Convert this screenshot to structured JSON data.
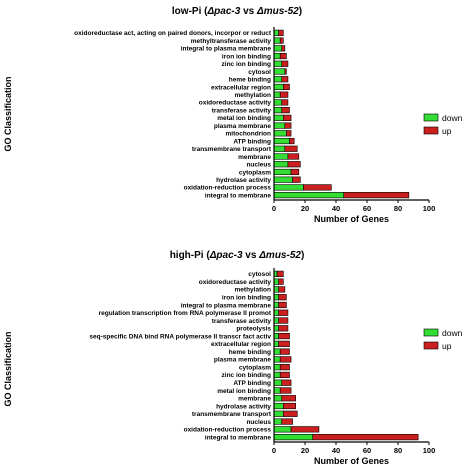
{
  "colors": {
    "down": "#33dd33",
    "up": "#cc1f1f",
    "axis": "#000000"
  },
  "chart_data": [
    {
      "type": "bar",
      "orientation": "horizontal",
      "stacked": true,
      "title": "low-Pi (Δpac-3 vs Δmus-52)",
      "title_parts": [
        "low-Pi (",
        "Δpac-3",
        " vs ",
        "Δmus-52",
        ")"
      ],
      "xlabel": "Number of Genes",
      "ylabel": "GO Classification",
      "xlim": [
        0,
        100
      ],
      "xticks": [
        0,
        20,
        40,
        60,
        80,
        100
      ],
      "legend_position": "right",
      "categories": [
        "oxidoreductase act, acting on paired donors, incorpor or reduct",
        "methyltransferase activity",
        "integral to plasma membrane",
        "iron ion binding",
        "zinc ion binding",
        "cytosol",
        "heme binding",
        "extracellular region",
        "methylation",
        "oxidoreductase activity",
        "transferase activity",
        "metal ion binding",
        "plasma membrane",
        "mitochondrion",
        "ATP binding",
        "transmembrane transport",
        "membrane",
        "nucleus",
        "cytoplasm",
        "hydrolase activity",
        "oxidation-reduction process",
        "integral to membrane"
      ],
      "series": [
        {
          "name": "down",
          "values": [
            3,
            4,
            5,
            4,
            5,
            7,
            5,
            6,
            4,
            5,
            5,
            6,
            7,
            8,
            10,
            7,
            9,
            9,
            11,
            12,
            19,
            45
          ]
        },
        {
          "name": "up",
          "values": [
            3,
            2,
            2,
            4,
            4,
            1,
            4,
            4,
            5,
            4,
            5,
            5,
            4,
            3,
            3,
            8,
            7,
            8,
            5,
            5,
            18,
            42
          ]
        }
      ]
    },
    {
      "type": "bar",
      "orientation": "horizontal",
      "stacked": true,
      "title": "high-Pi (Δpac-3 vs Δmus-52)",
      "title_parts": [
        "high-Pi (",
        "Δpac-3",
        " vs ",
        "Δmus-52",
        ")"
      ],
      "xlabel": "Number of Genes",
      "ylabel": "GO Classification",
      "xlim": [
        0,
        100
      ],
      "xticks": [
        0,
        20,
        40,
        60,
        80,
        100
      ],
      "legend_position": "right",
      "categories": [
        "cytosol",
        "oxidoreductase activity",
        "methylation",
        "iron ion binding",
        "integral to plasma membrane",
        "regulation transcription from RNA polymerase II promot",
        "transferase activity",
        "proteolysis",
        "seq-specific DNA bind RNA polymerase II transcr fact activ",
        "extracellular region",
        "heme binding",
        "plasma membrane",
        "cytoplasm",
        "zinc ion binding",
        "ATP binding",
        "metal ion binding",
        "membrane",
        "hydrolase activity",
        "transmembrane transport",
        "nucleus",
        "oxidation-reduction process",
        "integral to membrane"
      ],
      "series": [
        {
          "name": "down",
          "values": [
            2,
            3,
            3,
            3,
            3,
            3,
            3,
            3,
            3,
            3,
            4,
            4,
            4,
            4,
            5,
            4,
            5,
            6,
            6,
            5,
            11,
            25
          ]
        },
        {
          "name": "up",
          "values": [
            4,
            3,
            4,
            5,
            5,
            6,
            6,
            6,
            7,
            7,
            6,
            7,
            6,
            6,
            6,
            7,
            9,
            8,
            9,
            7,
            18,
            68
          ]
        }
      ]
    }
  ]
}
